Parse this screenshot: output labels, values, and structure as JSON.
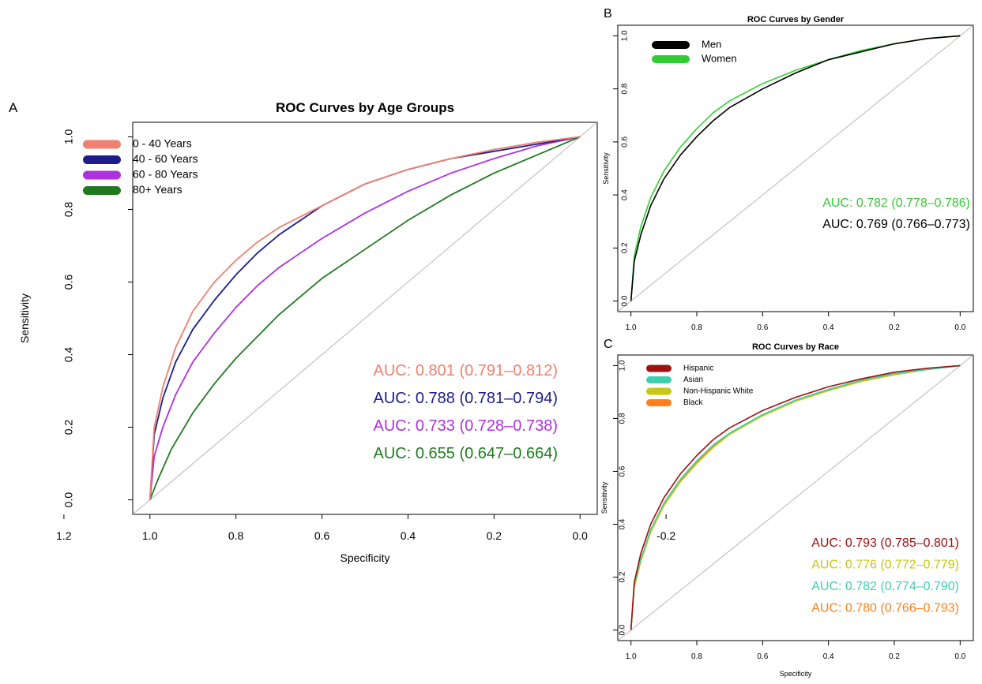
{
  "chart_data": [
    {
      "panel_letter": "A",
      "type": "line",
      "title": "ROC Curves by Age Groups",
      "xlabel": "Specificity",
      "ylabel": "Sensitivity",
      "x_reversed": true,
      "xlim": [
        1.2,
        -0.2
      ],
      "ylim": [
        0,
        1
      ],
      "x_ticks": [
        "1.2",
        "1.0",
        "0.8",
        "0.6",
        "0.4",
        "0.2",
        "0.0",
        "-0.2"
      ],
      "y_ticks": [
        "0.0",
        "0.2",
        "0.4",
        "0.6",
        "0.8",
        "1.0"
      ],
      "reference_line": "diagonal",
      "grid": false,
      "legend_position": "top-left",
      "series": [
        {
          "name": "0 - 40 Years",
          "color": "#f08070",
          "auc_text": "AUC: 0.801 (0.791–0.812)",
          "points": [
            [
              1.0,
              0.0
            ],
            [
              0.99,
              0.2
            ],
            [
              0.97,
              0.31
            ],
            [
              0.94,
              0.42
            ],
            [
              0.9,
              0.52
            ],
            [
              0.85,
              0.6
            ],
            [
              0.8,
              0.66
            ],
            [
              0.75,
              0.71
            ],
            [
              0.7,
              0.75
            ],
            [
              0.6,
              0.81
            ],
            [
              0.5,
              0.87
            ],
            [
              0.4,
              0.91
            ],
            [
              0.3,
              0.94
            ],
            [
              0.2,
              0.965
            ],
            [
              0.1,
              0.985
            ],
            [
              0.0,
              1.0
            ]
          ]
        },
        {
          "name": "40 - 60 Years",
          "color": "#1c1c8c",
          "auc_text": "AUC: 0.788 (0.781–0.794)",
          "points": [
            [
              1.0,
              0.0
            ],
            [
              0.99,
              0.18
            ],
            [
              0.97,
              0.28
            ],
            [
              0.94,
              0.38
            ],
            [
              0.9,
              0.47
            ],
            [
              0.85,
              0.55
            ],
            [
              0.8,
              0.62
            ],
            [
              0.75,
              0.68
            ],
            [
              0.7,
              0.73
            ],
            [
              0.6,
              0.81
            ],
            [
              0.5,
              0.87
            ],
            [
              0.4,
              0.91
            ],
            [
              0.3,
              0.94
            ],
            [
              0.2,
              0.96
            ],
            [
              0.1,
              0.98
            ],
            [
              0.0,
              1.0
            ]
          ]
        },
        {
          "name": "60 - 80 Years",
          "color": "#b030e0",
          "auc_text": "AUC: 0.733 (0.728–0.738)",
          "points": [
            [
              1.0,
              0.0
            ],
            [
              0.99,
              0.12
            ],
            [
              0.97,
              0.2
            ],
            [
              0.94,
              0.29
            ],
            [
              0.9,
              0.38
            ],
            [
              0.85,
              0.46
            ],
            [
              0.8,
              0.53
            ],
            [
              0.75,
              0.59
            ],
            [
              0.7,
              0.64
            ],
            [
              0.6,
              0.72
            ],
            [
              0.5,
              0.79
            ],
            [
              0.4,
              0.85
            ],
            [
              0.3,
              0.9
            ],
            [
              0.2,
              0.94
            ],
            [
              0.1,
              0.975
            ],
            [
              0.0,
              1.0
            ]
          ]
        },
        {
          "name": "80+ Years",
          "color": "#1f7a1f",
          "auc_text": "AUC: 0.655 (0.647–0.664)",
          "points": [
            [
              1.0,
              0.0
            ],
            [
              0.98,
              0.06
            ],
            [
              0.95,
              0.14
            ],
            [
              0.9,
              0.24
            ],
            [
              0.85,
              0.32
            ],
            [
              0.8,
              0.39
            ],
            [
              0.75,
              0.45
            ],
            [
              0.7,
              0.51
            ],
            [
              0.6,
              0.61
            ],
            [
              0.5,
              0.69
            ],
            [
              0.4,
              0.77
            ],
            [
              0.3,
              0.84
            ],
            [
              0.2,
              0.9
            ],
            [
              0.1,
              0.95
            ],
            [
              0.0,
              1.0
            ]
          ]
        }
      ]
    },
    {
      "panel_letter": "B",
      "type": "line",
      "title": "ROC Curves by Gender",
      "xlabel": "",
      "ylabel": "Sensitivity",
      "x_reversed": true,
      "xlim": [
        1.0,
        0.0
      ],
      "ylim": [
        0,
        1
      ],
      "x_ticks": [
        "1.0",
        "0.8",
        "0.6",
        "0.4",
        "0.2",
        "0.0"
      ],
      "y_ticks": [
        "0.0",
        "0.2",
        "0.4",
        "0.6",
        "0.8",
        "1.0"
      ],
      "reference_line": "diagonal",
      "grid": false,
      "legend_position": "top-left",
      "series": [
        {
          "name": "Men",
          "color": "#000000",
          "auc_text": "AUC: 0.769 (0.766–0.773)",
          "points": [
            [
              1.0,
              0.0
            ],
            [
              0.99,
              0.15
            ],
            [
              0.97,
              0.25
            ],
            [
              0.94,
              0.36
            ],
            [
              0.9,
              0.46
            ],
            [
              0.85,
              0.55
            ],
            [
              0.8,
              0.62
            ],
            [
              0.75,
              0.68
            ],
            [
              0.7,
              0.73
            ],
            [
              0.6,
              0.8
            ],
            [
              0.5,
              0.86
            ],
            [
              0.4,
              0.91
            ],
            [
              0.3,
              0.94
            ],
            [
              0.2,
              0.97
            ],
            [
              0.1,
              0.99
            ],
            [
              0.0,
              1.0
            ]
          ]
        },
        {
          "name": "Women",
          "color": "#33cc33",
          "auc_text": "AUC: 0.782 (0.778–0.786)",
          "points": [
            [
              1.0,
              0.0
            ],
            [
              0.99,
              0.17
            ],
            [
              0.97,
              0.28
            ],
            [
              0.94,
              0.39
            ],
            [
              0.9,
              0.49
            ],
            [
              0.85,
              0.58
            ],
            [
              0.8,
              0.65
            ],
            [
              0.75,
              0.71
            ],
            [
              0.7,
              0.755
            ],
            [
              0.6,
              0.82
            ],
            [
              0.5,
              0.87
            ],
            [
              0.4,
              0.91
            ],
            [
              0.3,
              0.945
            ],
            [
              0.2,
              0.97
            ],
            [
              0.1,
              0.99
            ],
            [
              0.0,
              1.0
            ]
          ]
        }
      ]
    },
    {
      "panel_letter": "C",
      "type": "line",
      "title": "ROC Curves by Race",
      "xlabel": "Specificity",
      "ylabel": "Sensitivity",
      "x_reversed": true,
      "xlim": [
        1.0,
        0.0
      ],
      "ylim": [
        0,
        1
      ],
      "x_ticks": [
        "1.0",
        "0.8",
        "0.6",
        "0.4",
        "0.2",
        "0.0"
      ],
      "y_ticks": [
        "0.0",
        "0.2",
        "0.4",
        "0.6",
        "0.8",
        "1.0"
      ],
      "reference_line": "diagonal",
      "grid": false,
      "legend_position": "top-left",
      "series": [
        {
          "name": "Hispanic",
          "color": "#a01010",
          "auc_text": "AUC: 0.793 (0.785–0.801)",
          "points": [
            [
              1.0,
              0.0
            ],
            [
              0.99,
              0.18
            ],
            [
              0.97,
              0.29
            ],
            [
              0.94,
              0.4
            ],
            [
              0.9,
              0.5
            ],
            [
              0.85,
              0.59
            ],
            [
              0.8,
              0.66
            ],
            [
              0.75,
              0.72
            ],
            [
              0.7,
              0.765
            ],
            [
              0.6,
              0.83
            ],
            [
              0.5,
              0.88
            ],
            [
              0.4,
              0.92
            ],
            [
              0.3,
              0.95
            ],
            [
              0.2,
              0.975
            ],
            [
              0.1,
              0.99
            ],
            [
              0.0,
              1.0
            ]
          ]
        },
        {
          "name": "Asian",
          "color": "#40d0b0",
          "auc_text": "AUC: 0.782 (0.774–0.790)",
          "points": [
            [
              1.0,
              0.0
            ],
            [
              0.99,
              0.17
            ],
            [
              0.97,
              0.27
            ],
            [
              0.94,
              0.38
            ],
            [
              0.9,
              0.48
            ],
            [
              0.85,
              0.57
            ],
            [
              0.8,
              0.64
            ],
            [
              0.75,
              0.7
            ],
            [
              0.7,
              0.745
            ],
            [
              0.6,
              0.815
            ],
            [
              0.5,
              0.87
            ],
            [
              0.4,
              0.91
            ],
            [
              0.3,
              0.945
            ],
            [
              0.2,
              0.97
            ],
            [
              0.1,
              0.985
            ],
            [
              0.0,
              1.0
            ]
          ]
        },
        {
          "name": "Non-Hispanic White",
          "color": "#c8c814",
          "auc_text": "AUC: 0.776 (0.772–0.779)",
          "points": [
            [
              1.0,
              0.0
            ],
            [
              0.99,
              0.16
            ],
            [
              0.97,
              0.26
            ],
            [
              0.94,
              0.37
            ],
            [
              0.9,
              0.47
            ],
            [
              0.85,
              0.56
            ],
            [
              0.8,
              0.63
            ],
            [
              0.75,
              0.69
            ],
            [
              0.7,
              0.74
            ],
            [
              0.6,
              0.81
            ],
            [
              0.5,
              0.865
            ],
            [
              0.4,
              0.905
            ],
            [
              0.3,
              0.94
            ],
            [
              0.2,
              0.965
            ],
            [
              0.1,
              0.985
            ],
            [
              0.0,
              1.0
            ]
          ]
        },
        {
          "name": "Black",
          "color": "#ff7f1a",
          "auc_text": "AUC: 0.780 (0.766–0.793)",
          "points": [
            [
              1.0,
              0.0
            ],
            [
              0.99,
              0.165
            ],
            [
              0.97,
              0.265
            ],
            [
              0.94,
              0.375
            ],
            [
              0.9,
              0.475
            ],
            [
              0.85,
              0.565
            ],
            [
              0.8,
              0.635
            ],
            [
              0.75,
              0.695
            ],
            [
              0.7,
              0.745
            ],
            [
              0.6,
              0.812
            ],
            [
              0.5,
              0.868
            ],
            [
              0.4,
              0.908
            ],
            [
              0.3,
              0.943
            ],
            [
              0.2,
              0.968
            ],
            [
              0.1,
              0.987
            ],
            [
              0.0,
              1.0
            ]
          ]
        }
      ]
    }
  ]
}
